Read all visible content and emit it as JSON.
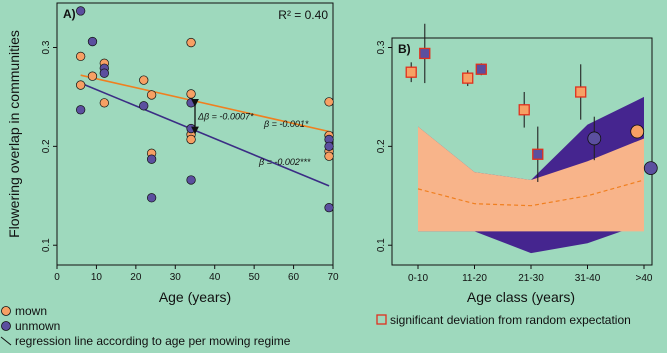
{
  "colors": {
    "background": "#9ed9bd",
    "mown": "#f7a064",
    "unmown": "#5b4f9f",
    "mown_line": "#f07f1f",
    "unmown_line": "#3b2d85",
    "band_mown": "#f8b48a",
    "band_unmown": "#45258f",
    "significant_edge": "#e0301e"
  },
  "chart_data": [
    {
      "type": "scatter",
      "panel_label": "A)",
      "xlabel": "Age (years)",
      "ylabel": "Flowering overlap in communities",
      "xlim": [
        0,
        70
      ],
      "ylim": [
        0.08,
        0.345
      ],
      "xticks": [
        "0",
        "10",
        "20",
        "30",
        "40",
        "50",
        "60",
        "70"
      ],
      "yticks": [
        "0.1",
        "0.2",
        "0.3"
      ],
      "r2_label": "R² = 0.40",
      "series": [
        {
          "name": "mown",
          "points": [
            [
              6,
              0.291
            ],
            [
              6,
              0.262
            ],
            [
              9,
              0.271
            ],
            [
              12,
              0.284
            ],
            [
              12,
              0.244
            ],
            [
              22,
              0.267
            ],
            [
              24,
              0.252
            ],
            [
              24,
              0.193
            ],
            [
              34,
              0.305
            ],
            [
              34,
              0.253
            ],
            [
              34,
              0.212
            ],
            [
              34,
              0.207
            ],
            [
              69,
              0.245
            ],
            [
              69,
              0.211
            ],
            [
              69,
              0.195
            ],
            [
              69,
              0.19
            ]
          ],
          "regression": {
            "x": [
              6,
              69
            ],
            "y": [
              0.272,
              0.215
            ],
            "label": "β = -0.001*"
          }
        },
        {
          "name": "unmown",
          "points": [
            [
              6,
              0.337
            ],
            [
              6,
              0.237
            ],
            [
              9,
              0.306
            ],
            [
              12,
              0.279
            ],
            [
              12,
              0.274
            ],
            [
              22,
              0.241
            ],
            [
              24,
              0.187
            ],
            [
              24,
              0.148
            ],
            [
              34,
              0.244
            ],
            [
              34,
              0.218
            ],
            [
              34,
              0.166
            ],
            [
              69,
              0.207
            ],
            [
              69,
              0.2
            ],
            [
              69,
              0.138
            ]
          ],
          "regression": {
            "x": [
              6,
              69
            ],
            "y": [
              0.264,
              0.16
            ],
            "label": "β = -0.002***"
          }
        }
      ],
      "annotation": {
        "label": "Δβ = -0.0007*",
        "x": 35,
        "y_top": 0.247,
        "y_bottom": 0.213
      }
    },
    {
      "type": "scatter",
      "panel_label": "B)",
      "xlabel": "Age class (years)",
      "categories": [
        "0-10",
        "11-20",
        "21-30",
        "31-40",
        ">40"
      ],
      "ylim": [
        0.08,
        0.345
      ],
      "yticks": [
        "0.1",
        "0.2",
        "0.3"
      ],
      "random_expectation": {
        "mown": {
          "upper": [
            0.22,
            0.174,
            0.166,
            0.185,
            0.208
          ],
          "lower": [
            0.114,
            0.114,
            0.114,
            0.114,
            0.114
          ],
          "mean": [
            0.157,
            0.142,
            0.14,
            0.15,
            0.166
          ]
        },
        "unmown": {
          "upper": [
            0.22,
            0.174,
            0.166,
            0.222,
            0.25
          ],
          "lower": [
            0.114,
            0.114,
            0.092,
            0.102,
            0.122
          ]
        }
      },
      "series": [
        {
          "name": "mown",
          "points": [
            {
              "cat": 0,
              "offset": -0.12,
              "y": 0.275,
              "err": 0.01,
              "significant": true
            },
            {
              "cat": 1,
              "offset": -0.12,
              "y": 0.269,
              "err": 0.008,
              "significant": true
            },
            {
              "cat": 2,
              "offset": -0.12,
              "y": 0.237,
              "err": 0.018,
              "significant": true
            },
            {
              "cat": 3,
              "offset": -0.12,
              "y": 0.255,
              "err": 0.028,
              "significant": true
            },
            {
              "cat": 4,
              "offset": -0.12,
              "y": 0.215,
              "err": 0.0,
              "significant": false
            }
          ]
        },
        {
          "name": "unmown",
          "points": [
            {
              "cat": 0,
              "offset": 0.12,
              "y": 0.294,
              "err": 0.03,
              "significant": true
            },
            {
              "cat": 1,
              "offset": 0.12,
              "y": 0.278,
              "err": 0.006,
              "significant": true
            },
            {
              "cat": 2,
              "offset": 0.12,
              "y": 0.192,
              "err": 0.028,
              "significant": true
            },
            {
              "cat": 3,
              "offset": 0.12,
              "y": 0.208,
              "err": 0.022,
              "significant": false
            },
            {
              "cat": 4,
              "offset": 0.12,
              "y": 0.178,
              "err": 0.0,
              "significant": false
            }
          ]
        }
      ]
    }
  ],
  "legend": {
    "mown": "mown",
    "unmown": "unmown",
    "regression": "regression line according to age per mowing regime",
    "significant": "significant deviation from random expectation"
  }
}
